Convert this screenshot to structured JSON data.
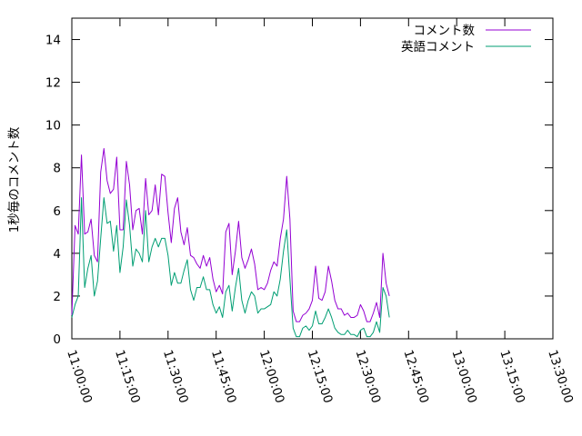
{
  "chart_data": {
    "type": "line",
    "title": "",
    "xlabel": "",
    "ylabel": "1秒毎のコメント数",
    "ylim": [
      0,
      15
    ],
    "xlim": [
      "11:00:00",
      "13:30:00"
    ],
    "yticks": [
      0,
      2,
      4,
      6,
      8,
      10,
      12,
      14
    ],
    "xticks": [
      "11:00:00",
      "11:15:00",
      "11:30:00",
      "11:45:00",
      "12:00:00",
      "12:15:00",
      "12:30:00",
      "12:45:00",
      "13:00:00",
      "13:15:00",
      "13:30:00"
    ],
    "x_step_seconds": 60,
    "x_start": "11:00:00",
    "legend_position": "top-right",
    "grid": false,
    "series": [
      {
        "name": "コメント数",
        "color": "#9400d3",
        "values": [
          1.1,
          5.3,
          4.9,
          8.6,
          4.9,
          5.0,
          5.6,
          3.9,
          3.6,
          7.8,
          8.9,
          7.4,
          6.8,
          7.0,
          8.5,
          5.1,
          5.1,
          8.3,
          7.2,
          5.1,
          6.0,
          6.1,
          4.9,
          7.5,
          5.8,
          6.0,
          7.2,
          5.8,
          7.7,
          7.6,
          5.9,
          4.5,
          6.1,
          6.6,
          5.0,
          4.4,
          5.2,
          3.9,
          3.8,
          3.5,
          3.3,
          3.9,
          3.4,
          3.8,
          2.8,
          2.2,
          2.5,
          2.1,
          5.0,
          5.4,
          3.0,
          4.1,
          5.5,
          3.8,
          3.3,
          3.7,
          4.2,
          3.5,
          2.3,
          2.4,
          2.3,
          2.6,
          3.2,
          3.6,
          3.4,
          4.7,
          5.6,
          7.6,
          5.6,
          1.3,
          0.8,
          0.8,
          1.1,
          1.2,
          1.4,
          1.8,
          3.4,
          1.9,
          1.8,
          2.2,
          3.4,
          2.7,
          1.8,
          1.4,
          1.4,
          1.1,
          1.2,
          1.0,
          1.0,
          1.1,
          1.6,
          1.3,
          0.8,
          0.8,
          1.2,
          1.7,
          1.0,
          4.0,
          2.6,
          2.0
        ]
      },
      {
        "name": "英語コメント",
        "color": "#009e73",
        "values": [
          1.0,
          1.6,
          2.0,
          6.6,
          2.4,
          3.3,
          3.9,
          2.0,
          2.7,
          4.7,
          6.6,
          5.4,
          5.5,
          4.1,
          5.3,
          3.1,
          4.3,
          6.5,
          5.3,
          3.4,
          4.2,
          4.0,
          3.6,
          6.0,
          3.6,
          4.3,
          4.7,
          4.3,
          4.7,
          4.7,
          3.9,
          2.5,
          3.1,
          2.6,
          2.6,
          3.2,
          3.7,
          2.3,
          1.8,
          2.4,
          2.4,
          2.9,
          2.3,
          2.3,
          1.6,
          1.2,
          1.5,
          1.0,
          2.2,
          2.5,
          1.3,
          2.4,
          3.3,
          1.8,
          1.2,
          1.8,
          2.2,
          2.0,
          1.2,
          1.4,
          1.4,
          1.5,
          1.6,
          2.2,
          2.0,
          2.8,
          4.1,
          5.1,
          2.8,
          0.5,
          0.1,
          0.1,
          0.5,
          0.6,
          0.4,
          0.6,
          1.3,
          0.7,
          0.7,
          1.0,
          1.4,
          1.0,
          0.5,
          0.3,
          0.2,
          0.2,
          0.4,
          0.2,
          0.2,
          0.1,
          0.4,
          0.5,
          0.1,
          0.1,
          0.3,
          0.8,
          0.3,
          2.4,
          2.0,
          1.0
        ]
      }
    ]
  }
}
